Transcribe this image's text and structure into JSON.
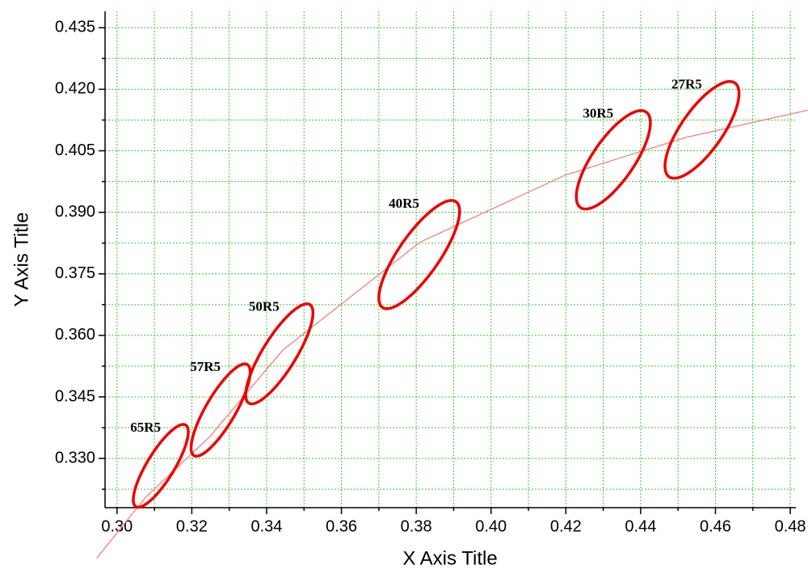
{
  "chart_data": {
    "type": "ellipse",
    "x_title": "X Axis Title",
    "y_title": "Y Axis Title",
    "xlim": [
      0.2968,
      0.4815
    ],
    "ylim": [
      0.318,
      0.439
    ],
    "xticks": [
      {
        "value": 0.3,
        "label": "0.30"
      },
      {
        "value": 0.32,
        "label": "0.32"
      },
      {
        "value": 0.34,
        "label": "0.34"
      },
      {
        "value": 0.36,
        "label": "0.36"
      },
      {
        "value": 0.38,
        "label": "0.38"
      },
      {
        "value": 0.4,
        "label": "0.40"
      },
      {
        "value": 0.42,
        "label": "0.42"
      },
      {
        "value": 0.44,
        "label": "0.44"
      },
      {
        "value": 0.46,
        "label": "0.46"
      },
      {
        "value": 0.48,
        "label": "0.48"
      }
    ],
    "xminor_ticks": [
      0.31,
      0.33,
      0.35,
      0.37,
      0.39,
      0.41,
      0.43,
      0.45,
      0.47
    ],
    "yticks": [
      {
        "value": 0.33,
        "label": "0.330"
      },
      {
        "value": 0.345,
        "label": "0.345"
      },
      {
        "value": 0.36,
        "label": "0.360"
      },
      {
        "value": 0.375,
        "label": "0.375"
      },
      {
        "value": 0.39,
        "label": "0.390"
      },
      {
        "value": 0.405,
        "label": "0.405"
      },
      {
        "value": 0.42,
        "label": "0.420"
      },
      {
        "value": 0.435,
        "label": "0.435"
      }
    ],
    "yminor_ticks": [
      0.3225,
      0.3375,
      0.3525,
      0.3675,
      0.3825,
      0.3975,
      0.4125,
      0.4275
    ],
    "grid": true,
    "grid_color": "#33cc33",
    "ellipse_color": "#ee0000",
    "ellipses": [
      {
        "name": "65R5",
        "x": 0.3117,
        "y": 0.3282,
        "x_radius": 0.00735,
        "y_radius": 0.0101,
        "rho": 0.82
      },
      {
        "name": "57R5",
        "x": 0.3277,
        "y": 0.3418,
        "x_radius": 0.0079,
        "y_radius": 0.01125,
        "rho": 0.82
      },
      {
        "name": "50R5",
        "x": 0.3434,
        "y": 0.3555,
        "x_radius": 0.009,
        "y_radius": 0.0122,
        "rho": 0.82
      },
      {
        "name": "40R5",
        "x": 0.3808,
        "y": 0.3797,
        "x_radius": 0.0108,
        "y_radius": 0.0132,
        "rho": 0.8
      },
      {
        "name": "30R5",
        "x": 0.4327,
        "y": 0.4028,
        "x_radius": 0.0099,
        "y_radius": 0.012,
        "rho": 0.75
      },
      {
        "name": "27R5",
        "x": 0.4564,
        "y": 0.4101,
        "x_radius": 0.0099,
        "y_radius": 0.0118,
        "rho": 0.75
      }
    ],
    "fit": {
      "color": "#f08080",
      "x": [
        0.2946,
        0.3076,
        0.3248,
        0.3443,
        0.381,
        0.4199,
        0.4523,
        0.4847
      ],
      "y": [
        0.3057,
        0.3205,
        0.3353,
        0.3564,
        0.3827,
        0.3991,
        0.4083,
        0.4149
      ]
    }
  }
}
